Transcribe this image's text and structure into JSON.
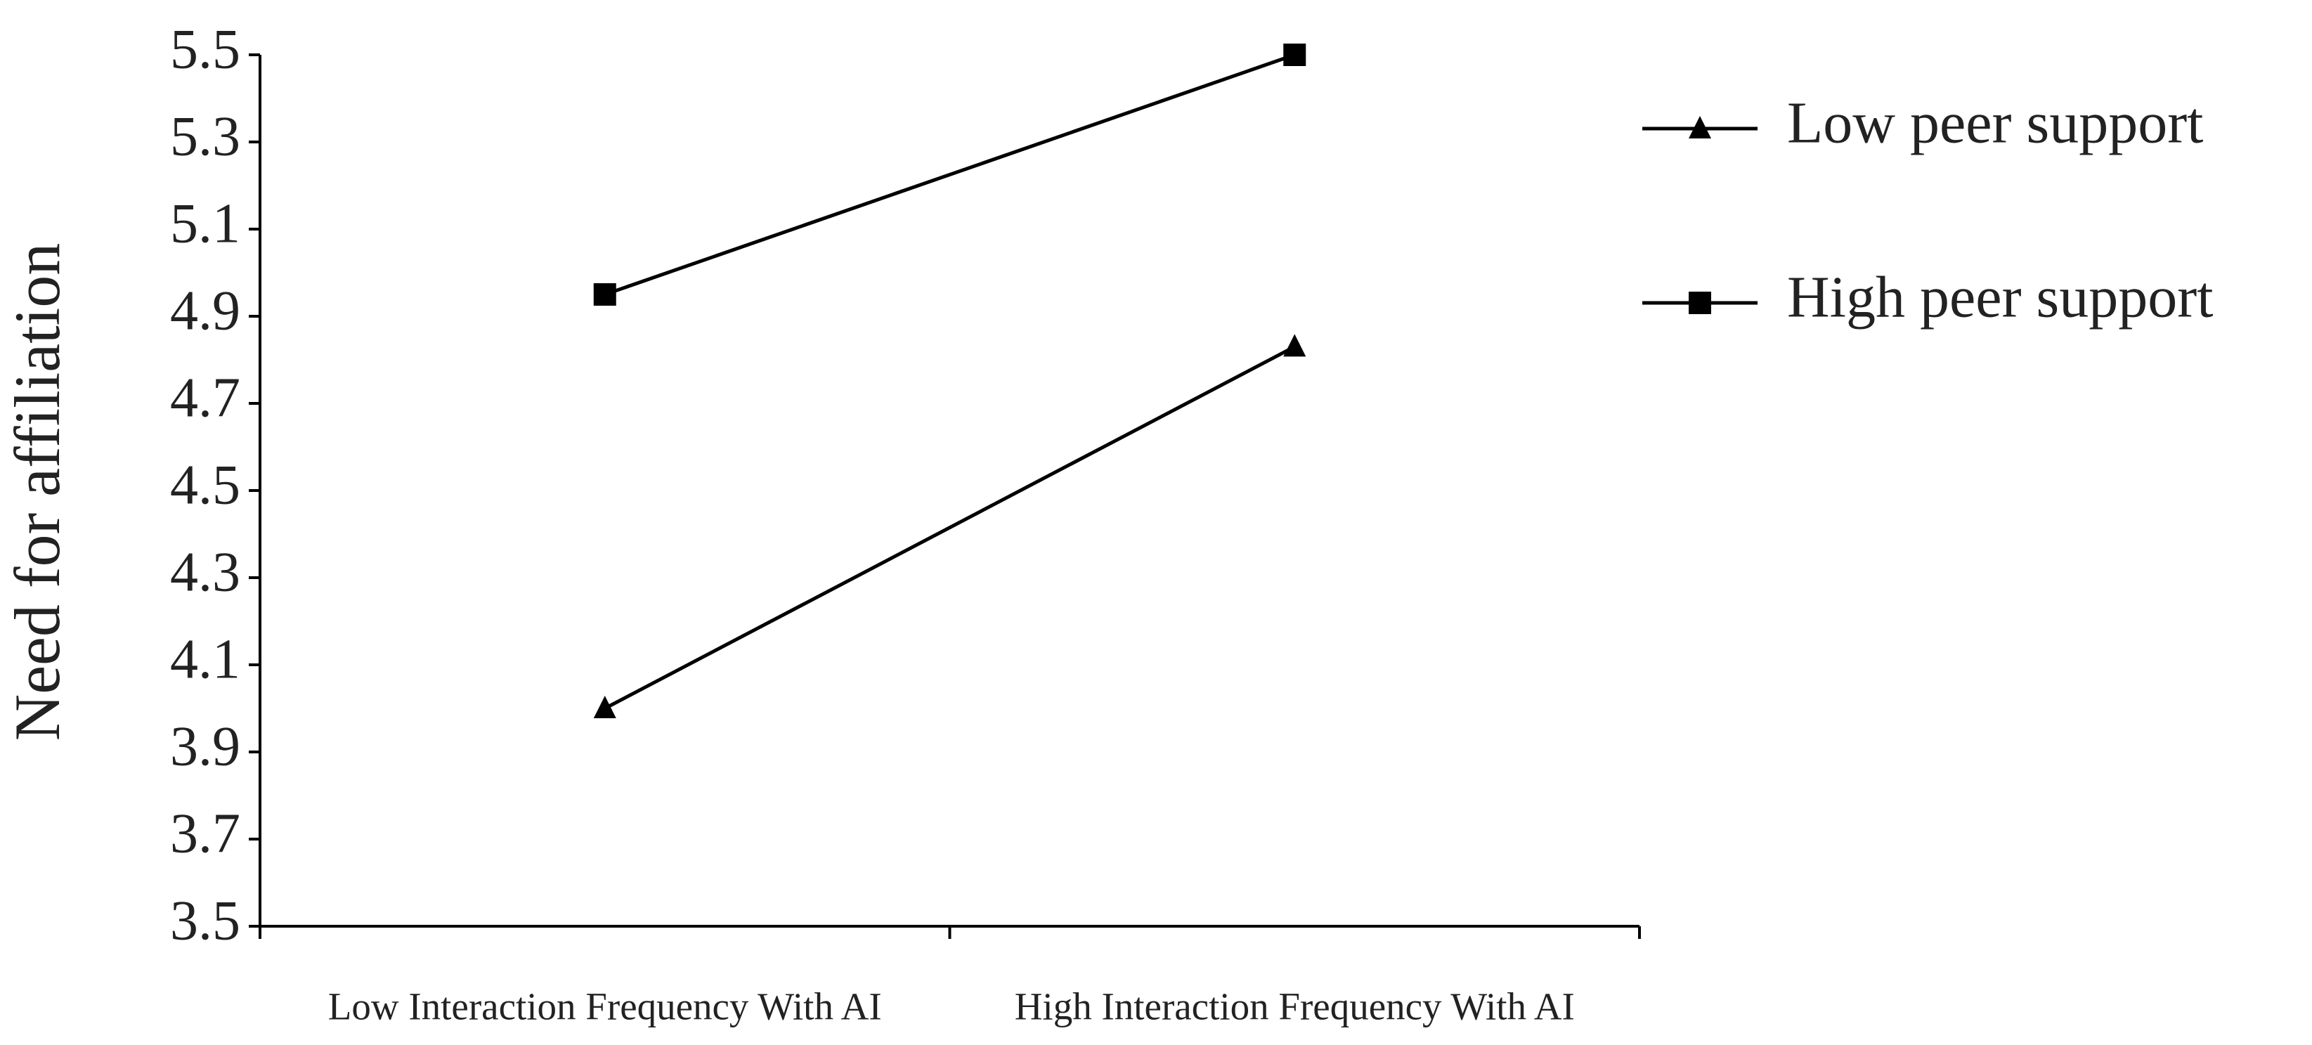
{
  "chart_data": {
    "type": "line",
    "y_label": "Need for affiliation",
    "categories": [
      "Low Interaction Frequency With AI",
      "High Interaction Frequency With AI"
    ],
    "series": [
      {
        "name": "Low peer support",
        "color": "#000000",
        "marker": "triangle",
        "values": [
          4.0,
          4.83
        ]
      },
      {
        "name": "High peer support",
        "color": "#000000",
        "marker": "square",
        "values": [
          4.95,
          5.5
        ]
      }
    ],
    "ylim": [
      3.5,
      5.5
    ],
    "yticks": [
      3.5,
      3.7,
      3.9,
      4.1,
      4.3,
      4.5,
      4.7,
      4.9,
      5.1,
      5.3,
      5.5
    ],
    "grid": false,
    "legend": "right"
  }
}
